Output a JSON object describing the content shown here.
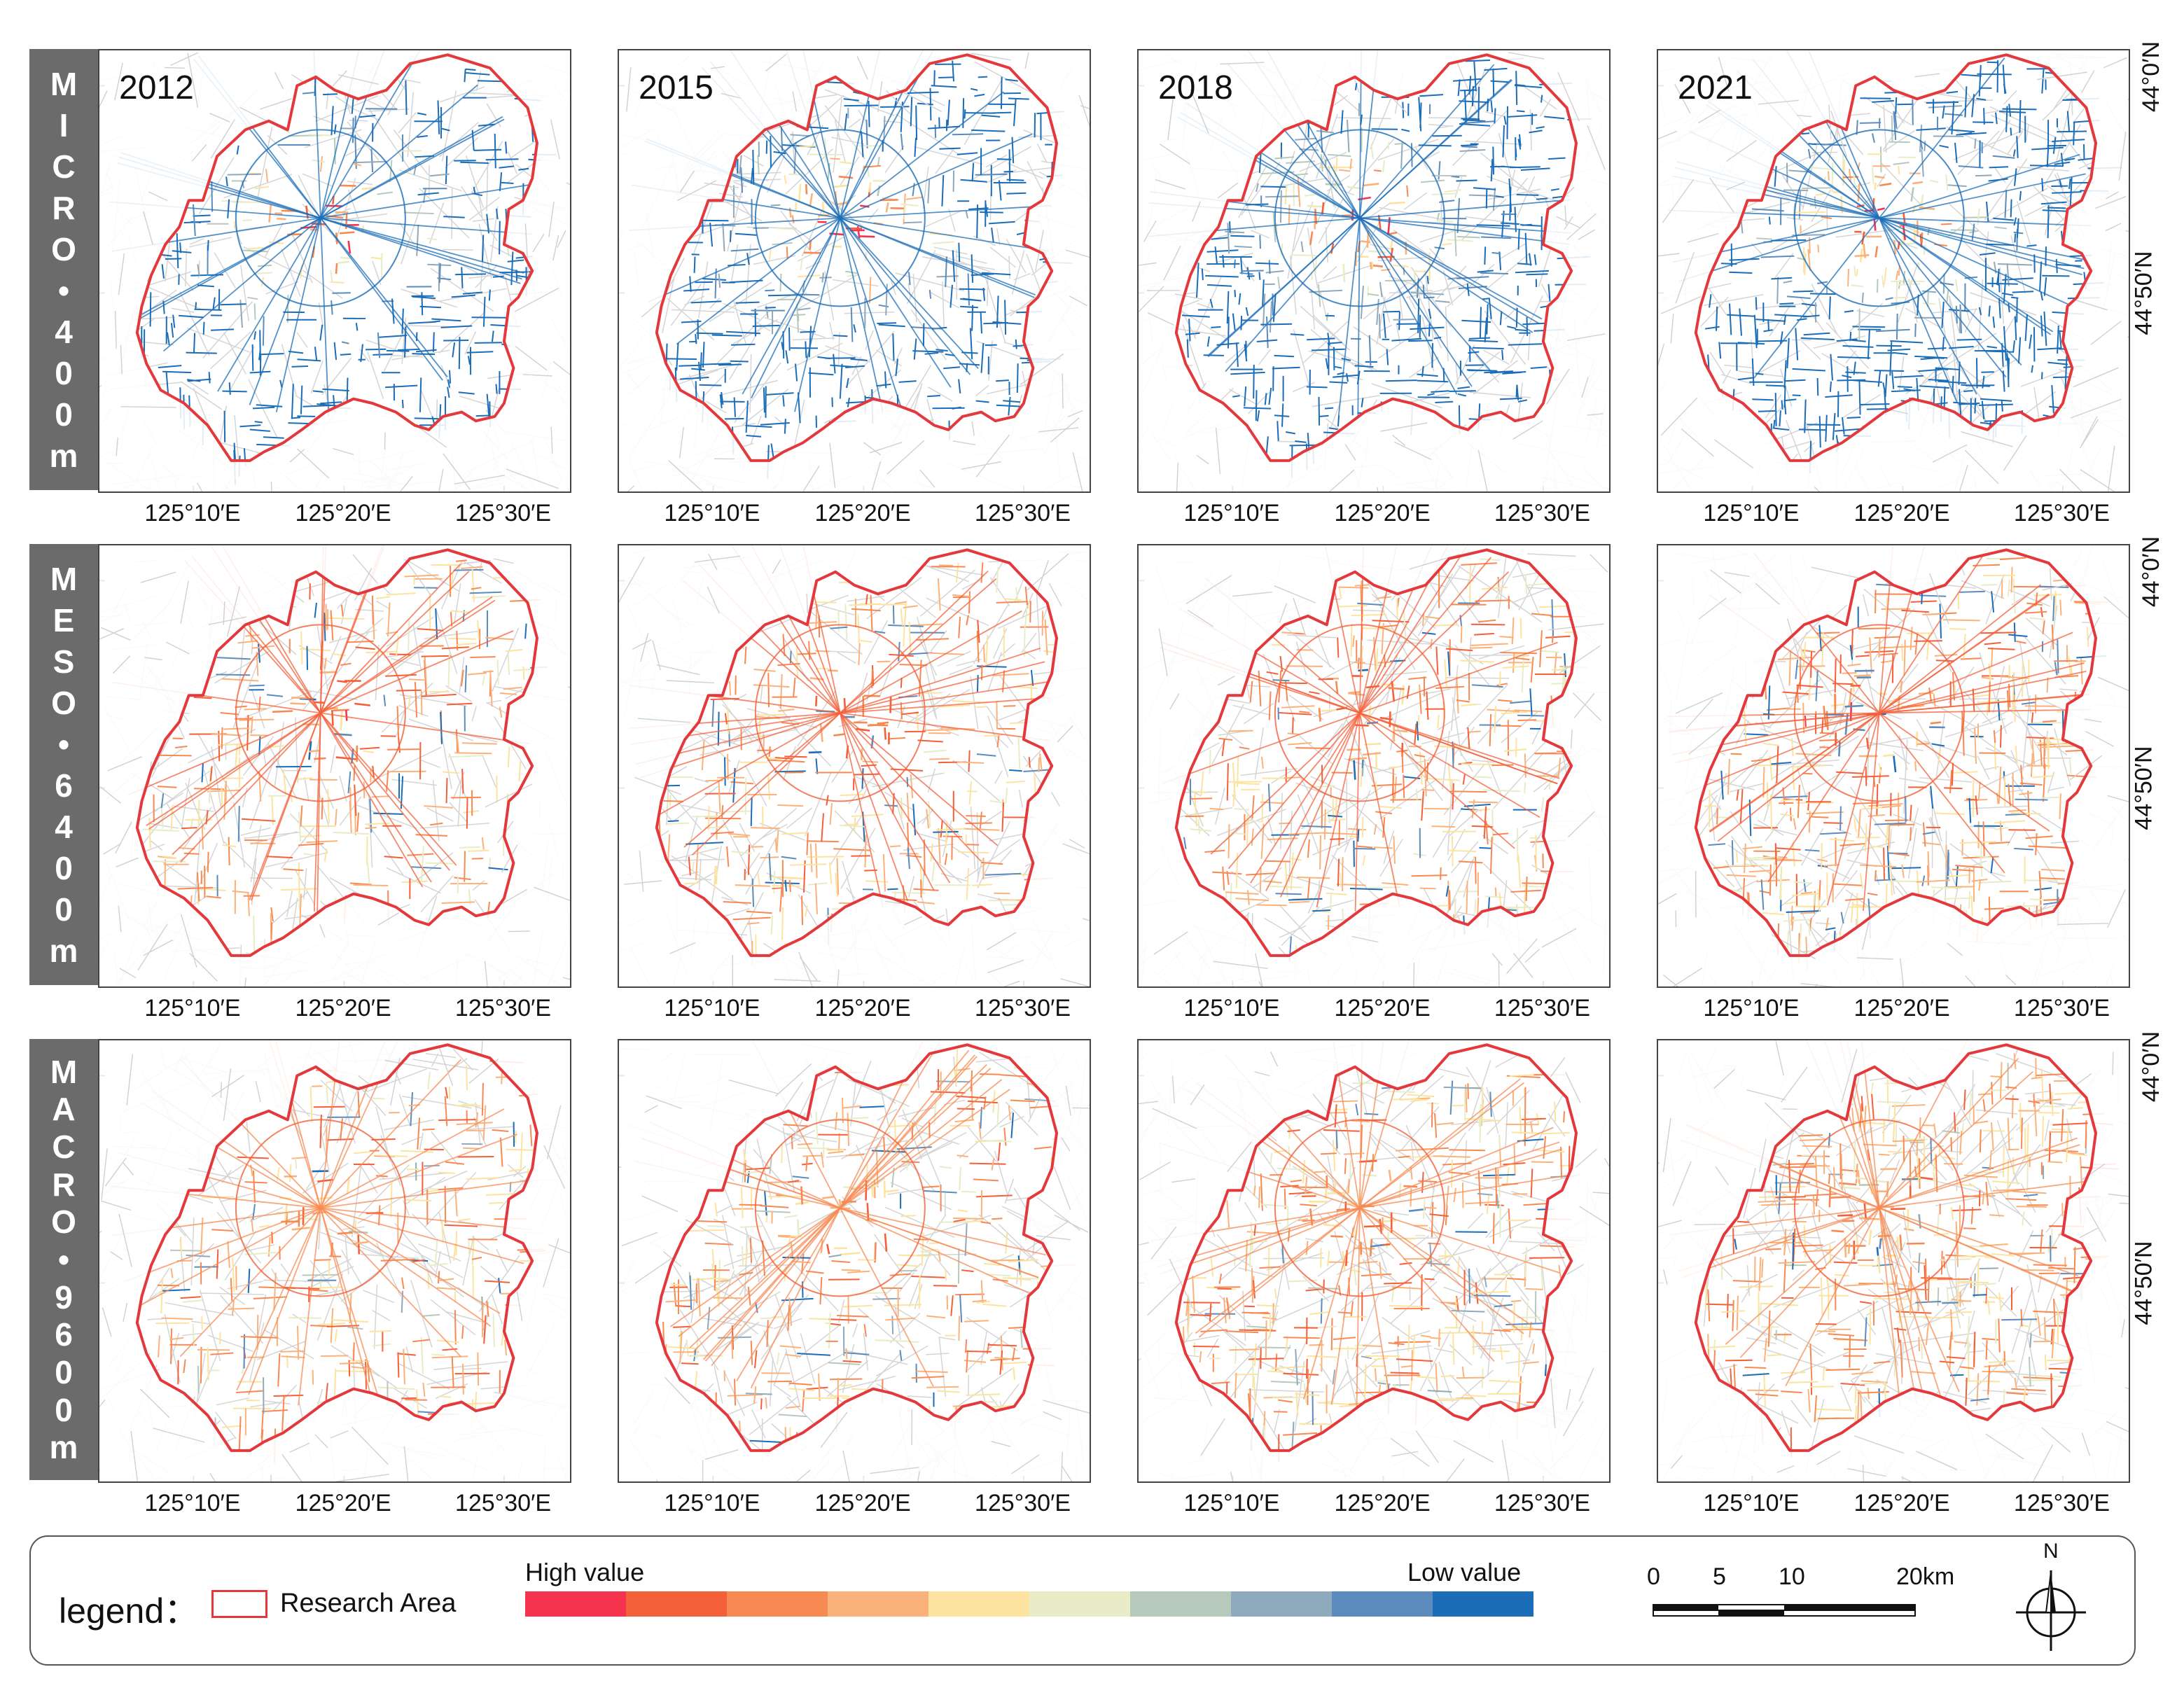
{
  "rows": [
    {
      "label": "MICRO•400m"
    },
    {
      "label": "MESO•6400m"
    },
    {
      "label": "MACRO•9600m"
    }
  ],
  "years": [
    "2012",
    "2015",
    "2018",
    "2021"
  ],
  "longitude_labels": [
    "125°10′E",
    "125°20′E",
    "125°30′E"
  ],
  "latitude_labels": [
    "44°0′N",
    "44°50′N"
  ],
  "legend": {
    "title": "legend：",
    "research_area": "Research Area",
    "high_label": "High value",
    "low_label": "Low value",
    "ramp_colors": [
      "#f5334f",
      "#f3603a",
      "#f78a53",
      "#fbb27a",
      "#fde3a0",
      "#e8edc7",
      "#b7c9bb",
      "#8fa9bd",
      "#5c8cbe",
      "#1b6db7"
    ],
    "boundary_color": "#e3393c"
  },
  "scale_bar": {
    "ticks": [
      "0",
      "5",
      "10",
      "20km"
    ]
  },
  "north_arrow": {
    "label": "N",
    "icon": "north-arrow-icon"
  }
}
